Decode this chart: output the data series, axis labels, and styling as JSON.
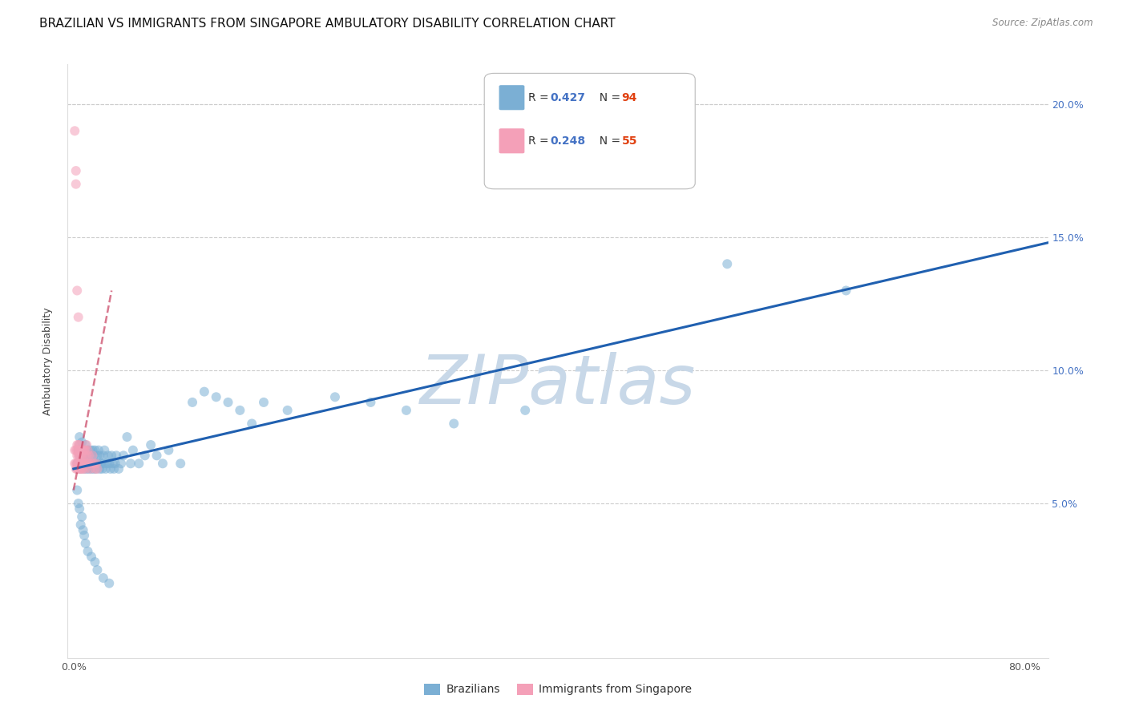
{
  "title": "BRAZILIAN VS IMMIGRANTS FROM SINGAPORE AMBULATORY DISABILITY CORRELATION CHART",
  "source": "Source: ZipAtlas.com",
  "ylabel": "Ambulatory Disability",
  "xlim": [
    -0.005,
    0.82
  ],
  "ylim": [
    -0.008,
    0.215
  ],
  "blue_scatter_x": [
    0.003,
    0.004,
    0.005,
    0.005,
    0.005,
    0.006,
    0.006,
    0.007,
    0.007,
    0.008,
    0.008,
    0.009,
    0.009,
    0.01,
    0.01,
    0.011,
    0.011,
    0.012,
    0.012,
    0.013,
    0.013,
    0.014,
    0.014,
    0.015,
    0.015,
    0.016,
    0.016,
    0.017,
    0.017,
    0.018,
    0.018,
    0.019,
    0.02,
    0.02,
    0.021,
    0.022,
    0.022,
    0.023,
    0.024,
    0.025,
    0.025,
    0.026,
    0.027,
    0.028,
    0.029,
    0.03,
    0.031,
    0.032,
    0.033,
    0.034,
    0.035,
    0.036,
    0.038,
    0.04,
    0.042,
    0.045,
    0.048,
    0.05,
    0.055,
    0.06,
    0.065,
    0.07,
    0.075,
    0.08,
    0.09,
    0.1,
    0.11,
    0.12,
    0.13,
    0.14,
    0.15,
    0.16,
    0.18,
    0.22,
    0.25,
    0.28,
    0.32,
    0.38,
    0.55,
    0.65,
    0.003,
    0.004,
    0.005,
    0.006,
    0.007,
    0.008,
    0.009,
    0.01,
    0.012,
    0.015,
    0.018,
    0.02,
    0.025,
    0.03
  ],
  "blue_scatter_y": [
    0.065,
    0.07,
    0.072,
    0.068,
    0.075,
    0.07,
    0.063,
    0.068,
    0.073,
    0.065,
    0.07,
    0.063,
    0.068,
    0.072,
    0.065,
    0.068,
    0.063,
    0.07,
    0.065,
    0.068,
    0.063,
    0.065,
    0.07,
    0.063,
    0.068,
    0.065,
    0.07,
    0.063,
    0.068,
    0.065,
    0.07,
    0.063,
    0.068,
    0.065,
    0.07,
    0.063,
    0.068,
    0.065,
    0.063,
    0.068,
    0.065,
    0.07,
    0.063,
    0.065,
    0.068,
    0.065,
    0.063,
    0.068,
    0.065,
    0.063,
    0.065,
    0.068,
    0.063,
    0.065,
    0.068,
    0.075,
    0.065,
    0.07,
    0.065,
    0.068,
    0.072,
    0.068,
    0.065,
    0.07,
    0.065,
    0.088,
    0.092,
    0.09,
    0.088,
    0.085,
    0.08,
    0.088,
    0.085,
    0.09,
    0.088,
    0.085,
    0.08,
    0.085,
    0.14,
    0.13,
    0.055,
    0.05,
    0.048,
    0.042,
    0.045,
    0.04,
    0.038,
    0.035,
    0.032,
    0.03,
    0.028,
    0.025,
    0.022,
    0.02
  ],
  "pink_scatter_x": [
    0.001,
    0.001,
    0.002,
    0.002,
    0.002,
    0.003,
    0.003,
    0.003,
    0.003,
    0.003,
    0.004,
    0.004,
    0.004,
    0.004,
    0.004,
    0.005,
    0.005,
    0.005,
    0.005,
    0.005,
    0.006,
    0.006,
    0.006,
    0.006,
    0.007,
    0.007,
    0.007,
    0.007,
    0.008,
    0.008,
    0.008,
    0.009,
    0.009,
    0.009,
    0.01,
    0.01,
    0.01,
    0.011,
    0.011,
    0.012,
    0.012,
    0.013,
    0.013,
    0.014,
    0.015,
    0.016,
    0.017,
    0.018,
    0.019,
    0.02,
    0.001,
    0.002,
    0.002,
    0.003,
    0.004
  ],
  "pink_scatter_y": [
    0.065,
    0.07,
    0.065,
    0.07,
    0.063,
    0.065,
    0.07,
    0.063,
    0.068,
    0.072,
    0.065,
    0.07,
    0.063,
    0.068,
    0.072,
    0.065,
    0.07,
    0.063,
    0.068,
    0.072,
    0.065,
    0.07,
    0.063,
    0.068,
    0.065,
    0.07,
    0.063,
    0.068,
    0.065,
    0.07,
    0.063,
    0.065,
    0.07,
    0.068,
    0.065,
    0.07,
    0.063,
    0.068,
    0.072,
    0.065,
    0.07,
    0.068,
    0.065,
    0.063,
    0.065,
    0.068,
    0.065,
    0.063,
    0.065,
    0.063,
    0.19,
    0.175,
    0.17,
    0.13,
    0.12
  ],
  "blue_line_x": [
    0.0,
    0.82
  ],
  "blue_line_y": [
    0.063,
    0.148
  ],
  "pink_line_x": [
    0.0,
    0.032
  ],
  "pink_line_y": [
    0.055,
    0.13
  ],
  "scatter_alpha": 0.55,
  "scatter_size": 75,
  "blue_color": "#7bafd4",
  "pink_color": "#f4a0b8",
  "blue_line_color": "#2060b0",
  "pink_line_color": "#c84060",
  "grid_color": "#cccccc",
  "watermark_text": "ZIPatlas",
  "watermark_color": "#c8d8e8",
  "title_fontsize": 11,
  "axis_label_fontsize": 9,
  "tick_fontsize": 9,
  "legend_fontsize": 10
}
